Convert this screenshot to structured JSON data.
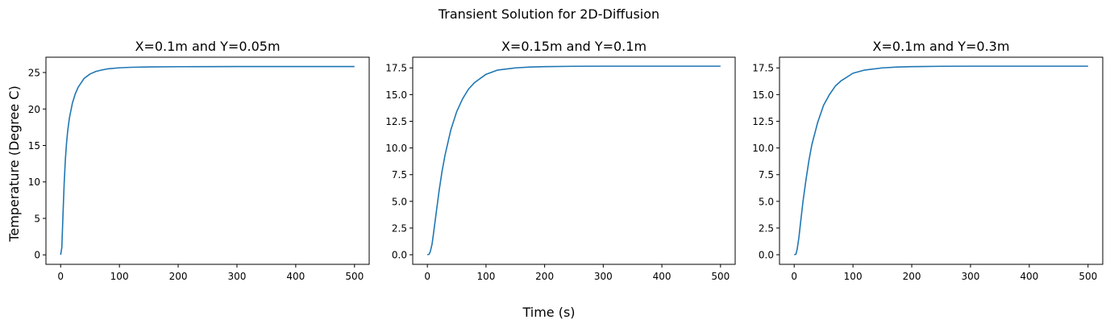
{
  "figure": {
    "suptitle": "Transient Solution for 2D-Diffusion",
    "xlabel": "Time (s)",
    "ylabel": "Temperature (Degree C)",
    "line_color": "#1f77b4"
  },
  "chart_data": [
    {
      "type": "line",
      "title": "X=0.1m and Y=0.05m",
      "xlim": [
        -25,
        525
      ],
      "ylim": [
        -1.3,
        27.1
      ],
      "xticks": [
        0,
        100,
        200,
        300,
        400,
        500
      ],
      "xtick_labels": [
        "0",
        "100",
        "200",
        "300",
        "400",
        "500"
      ],
      "yticks": [
        0,
        5,
        10,
        15,
        20,
        25
      ],
      "ytick_labels": [
        "0",
        "5",
        "10",
        "15",
        "20",
        "25"
      ],
      "grid": false,
      "x": [
        0,
        2,
        4,
        6,
        8,
        10,
        12,
        15,
        20,
        25,
        30,
        40,
        50,
        60,
        70,
        80,
        100,
        120,
        150,
        200,
        250,
        300,
        400,
        500
      ],
      "y": [
        0,
        1.0,
        5.5,
        9.8,
        13.0,
        15.3,
        17.0,
        18.8,
        20.8,
        22.1,
        23.0,
        24.2,
        24.8,
        25.15,
        25.35,
        25.5,
        25.65,
        25.72,
        25.77,
        25.8,
        25.81,
        25.82,
        25.82,
        25.82
      ]
    },
    {
      "type": "line",
      "title": "X=0.15m and Y=0.1m",
      "xlim": [
        -25,
        525
      ],
      "ylim": [
        -0.9,
        18.5
      ],
      "xticks": [
        0,
        100,
        200,
        300,
        400,
        500
      ],
      "xtick_labels": [
        "0",
        "100",
        "200",
        "300",
        "400",
        "500"
      ],
      "yticks": [
        0,
        2.5,
        5,
        7.5,
        10,
        12.5,
        15,
        17.5
      ],
      "ytick_labels": [
        "0.0",
        "2.5",
        "5.0",
        "7.5",
        "10.0",
        "12.5",
        "15.0",
        "17.5"
      ],
      "grid": false,
      "x": [
        0,
        3,
        5,
        8,
        10,
        15,
        20,
        25,
        30,
        40,
        50,
        60,
        70,
        80,
        100,
        120,
        150,
        175,
        200,
        250,
        300,
        400,
        500
      ],
      "y": [
        0,
        0.05,
        0.3,
        1.0,
        1.8,
        3.9,
        6.0,
        7.8,
        9.3,
        11.7,
        13.4,
        14.6,
        15.5,
        16.1,
        16.9,
        17.3,
        17.5,
        17.58,
        17.62,
        17.65,
        17.66,
        17.66,
        17.66
      ]
    },
    {
      "type": "line",
      "title": "X=0.1m and Y=0.3m",
      "xlim": [
        -25,
        525
      ],
      "ylim": [
        -0.9,
        18.5
      ],
      "xticks": [
        0,
        100,
        200,
        300,
        400,
        500
      ],
      "xtick_labels": [
        "0",
        "100",
        "200",
        "300",
        "400",
        "500"
      ],
      "yticks": [
        0,
        2.5,
        5,
        7.5,
        10,
        12.5,
        15,
        17.5
      ],
      "ytick_labels": [
        "0.0",
        "2.5",
        "5.0",
        "7.5",
        "10.0",
        "12.5",
        "15.0",
        "17.5"
      ],
      "grid": false,
      "x": [
        0,
        3,
        5,
        8,
        10,
        15,
        20,
        25,
        30,
        40,
        50,
        60,
        70,
        80,
        100,
        120,
        150,
        175,
        200,
        250,
        300,
        400,
        500
      ],
      "y": [
        0,
        0.05,
        0.5,
        1.6,
        2.6,
        5.0,
        7.0,
        8.8,
        10.3,
        12.4,
        14.0,
        15.0,
        15.8,
        16.3,
        17.0,
        17.3,
        17.5,
        17.58,
        17.62,
        17.65,
        17.66,
        17.66,
        17.66
      ]
    }
  ]
}
